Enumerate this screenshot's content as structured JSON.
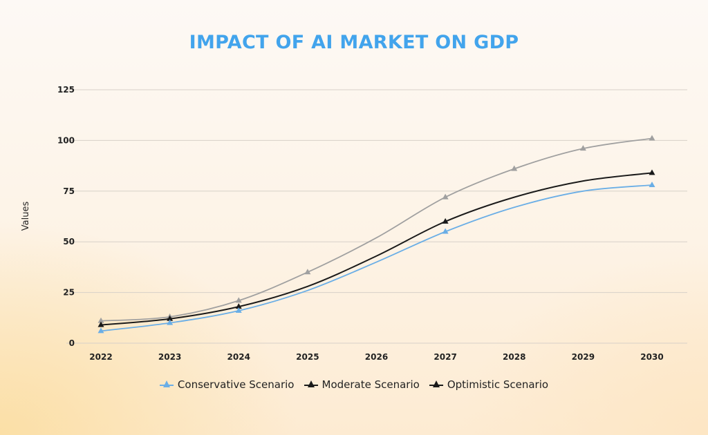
{
  "chart_data": {
    "type": "line",
    "title": "IMPACT OF AI MARKET ON GDP",
    "xlabel": "",
    "ylabel": "Values",
    "x": [
      "2022",
      "2023",
      "2024",
      "2025",
      "2026",
      "2027",
      "2028",
      "2029",
      "2030"
    ],
    "yticks": [
      0,
      25,
      50,
      75,
      100,
      125
    ],
    "ylim": [
      0,
      125
    ],
    "grid": true,
    "legend_position": "bottom",
    "series": [
      {
        "name": "Conservative Scenario",
        "color": "#6aaee6",
        "values": [
          6,
          10,
          16,
          26,
          40,
          55,
          67,
          75,
          78
        ],
        "markers_at": [
          "2022",
          "2023",
          "2024",
          "2027",
          "2030"
        ]
      },
      {
        "name": "Moderate Scenario",
        "color": "#1a1a1a",
        "values": [
          9,
          12,
          18,
          28,
          43,
          60,
          72,
          80,
          84
        ],
        "markers_at": [
          "2022",
          "2023",
          "2024",
          "2027",
          "2030"
        ]
      },
      {
        "name": "Optimistic Scenario",
        "color": "#a0a0a0",
        "legend_color": "#1a1a1a",
        "values": [
          11,
          13,
          21,
          35,
          52,
          72,
          86,
          96,
          101
        ],
        "markers_at": [
          "2022",
          "2023",
          "2024",
          "2025",
          "2027",
          "2028",
          "2029",
          "2030"
        ]
      }
    ]
  }
}
